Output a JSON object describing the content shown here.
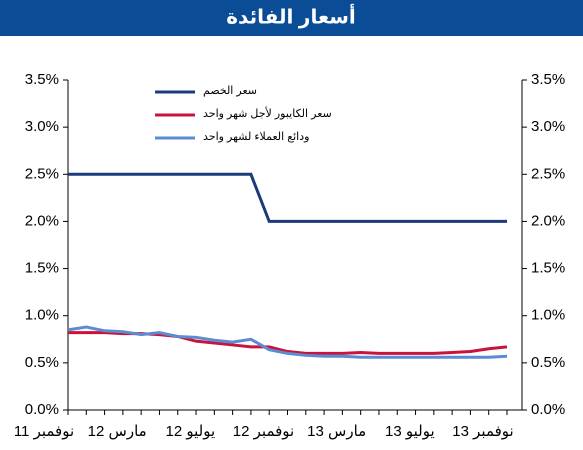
{
  "chart_data": {
    "type": "line",
    "title": "أسعار الفائدة",
    "categories": [
      "نوفمبر 11",
      null,
      null,
      null,
      "مارس 12",
      null,
      null,
      null,
      "يوليو 12",
      null,
      null,
      null,
      "نوفمبر 12",
      null,
      null,
      null,
      "مارس 13",
      null,
      null,
      null,
      "يوليو 13",
      null,
      null,
      null,
      "نوفمبر 13"
    ],
    "series": [
      {
        "name": "سعر الخصم",
        "color": "#1c3a7c",
        "values": [
          2.5,
          2.5,
          2.5,
          2.5,
          2.5,
          2.5,
          2.5,
          2.5,
          2.5,
          2.5,
          2.5,
          2.0,
          2.0,
          2.0,
          2.0,
          2.0,
          2.0,
          2.0,
          2.0,
          2.0,
          2.0,
          2.0,
          2.0,
          2.0,
          2.0
        ]
      },
      {
        "name": "سعر الكايبور لأجل شهر واحد",
        "color": "#c8143c",
        "values": [
          0.82,
          0.82,
          0.82,
          0.81,
          0.81,
          0.8,
          0.78,
          0.73,
          0.71,
          0.69,
          0.67,
          0.67,
          0.62,
          0.6,
          0.6,
          0.6,
          0.61,
          0.6,
          0.6,
          0.6,
          0.6,
          0.61,
          0.62,
          0.65,
          0.67
        ]
      },
      {
        "name": "ودائع العملاء لشهر واحد",
        "color": "#5b8bd0",
        "values": [
          0.85,
          0.88,
          0.84,
          0.83,
          0.8,
          0.82,
          0.78,
          0.77,
          0.74,
          0.72,
          0.75,
          0.64,
          0.6,
          0.58,
          0.57,
          0.57,
          0.56,
          0.56,
          0.56,
          0.56,
          0.56,
          0.56,
          0.56,
          0.56,
          0.57
        ]
      }
    ],
    "ylim": [
      0,
      3.5
    ],
    "yticks": [
      {
        "value": 0,
        "label": "0.0%"
      },
      {
        "value": 0.5,
        "label": "0.5%"
      },
      {
        "value": 1,
        "label": "1.0%"
      },
      {
        "value": 1.5,
        "label": "1.5%"
      },
      {
        "value": 2,
        "label": "2.0%"
      },
      {
        "value": 2.5,
        "label": "2.5%"
      },
      {
        "value": 3,
        "label": "3.0%"
      },
      {
        "value": 3.5,
        "label": "3.5%"
      }
    ],
    "y2lim": [
      0,
      3.5
    ],
    "y2ticks": [
      {
        "value": 0,
        "label": "0.0%"
      },
      {
        "value": 0.5,
        "label": "0.5%"
      },
      {
        "value": 1,
        "label": "1.0%"
      },
      {
        "value": 1.5,
        "label": "1.5%"
      },
      {
        "value": 2,
        "label": "2.0%"
      },
      {
        "value": 2.5,
        "label": "2.5%"
      },
      {
        "value": 3,
        "label": "3.0%"
      },
      {
        "value": 3.5,
        "label": "3.5%"
      }
    ],
    "legend": "top"
  }
}
